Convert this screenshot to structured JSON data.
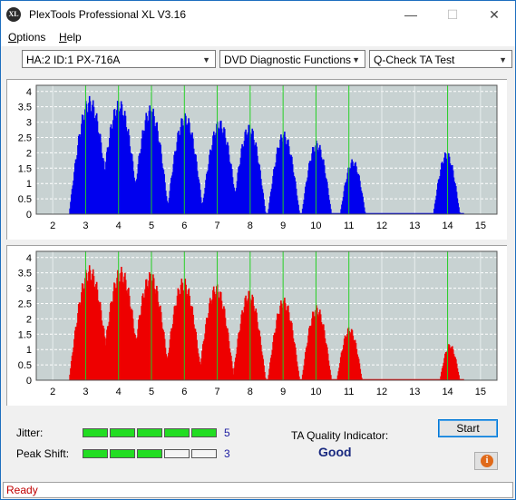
{
  "window": {
    "title": "PlexTools Professional XL V3.16",
    "icon_text": "XL",
    "minimize": "—",
    "maximize": "☐",
    "close": "✕"
  },
  "menu": {
    "options": {
      "mnemonic": "O",
      "rest": "ptions"
    },
    "help": {
      "mnemonic": "H",
      "rest": "elp"
    }
  },
  "toolbar": {
    "drive": "HA:2 ID:1  PX-716A",
    "function": "DVD Diagnostic Functions",
    "test": "Q-Check TA Test",
    "dropdown_arrow": "▼"
  },
  "chart_data": [
    {
      "type": "bar",
      "id": "top",
      "color": "#0000ee",
      "x_ticks": [
        "2",
        "3",
        "4",
        "5",
        "6",
        "7",
        "8",
        "9",
        "10",
        "11",
        "12",
        "13",
        "14",
        "15"
      ],
      "y_ticks": [
        "4",
        "3.5",
        "3",
        "2.5",
        "2",
        "1.5",
        "1",
        "0.5",
        "0"
      ],
      "xlim": [
        1.5,
        15.5
      ],
      "ylim": [
        0,
        4.2
      ],
      "markers": [
        3,
        4,
        5,
        6,
        7,
        8,
        9,
        10,
        11,
        14
      ],
      "peaks": [
        {
          "center": 3.1,
          "height": 3.85,
          "width": 0.62
        },
        {
          "center": 4.0,
          "height": 3.75,
          "width": 0.6
        },
        {
          "center": 4.95,
          "height": 3.55,
          "width": 0.55
        },
        {
          "center": 6.0,
          "height": 3.3,
          "width": 0.55
        },
        {
          "center": 7.05,
          "height": 3.1,
          "width": 0.55
        },
        {
          "center": 7.95,
          "height": 2.95,
          "width": 0.5
        },
        {
          "center": 9.0,
          "height": 2.7,
          "width": 0.48
        },
        {
          "center": 10.0,
          "height": 2.4,
          "width": 0.45
        },
        {
          "center": 11.1,
          "height": 1.8,
          "width": 0.38
        },
        {
          "center": 13.95,
          "height": 2.05,
          "width": 0.4
        }
      ]
    },
    {
      "type": "bar",
      "id": "bottom",
      "color": "#ee0000",
      "x_ticks": [
        "2",
        "3",
        "4",
        "5",
        "6",
        "7",
        "8",
        "9",
        "10",
        "11",
        "12",
        "13",
        "14",
        "15"
      ],
      "y_ticks": [
        "4",
        "3.5",
        "3",
        "2.5",
        "2",
        "1.5",
        "1",
        "0.5",
        "0"
      ],
      "xlim": [
        1.5,
        15.5
      ],
      "ylim": [
        0,
        4.2
      ],
      "markers": [
        3,
        4,
        5,
        6,
        7,
        8,
        9,
        10,
        11,
        14
      ],
      "peaks": [
        {
          "center": 3.1,
          "height": 3.75,
          "width": 0.62
        },
        {
          "center": 4.05,
          "height": 3.7,
          "width": 0.6
        },
        {
          "center": 4.95,
          "height": 3.55,
          "width": 0.58
        },
        {
          "center": 5.95,
          "height": 3.35,
          "width": 0.56
        },
        {
          "center": 6.95,
          "height": 3.15,
          "width": 0.54
        },
        {
          "center": 7.95,
          "height": 2.95,
          "width": 0.5
        },
        {
          "center": 9.0,
          "height": 2.7,
          "width": 0.48
        },
        {
          "center": 10.0,
          "height": 2.45,
          "width": 0.45
        },
        {
          "center": 11.0,
          "height": 1.75,
          "width": 0.38
        },
        {
          "center": 14.05,
          "height": 1.2,
          "width": 0.3
        }
      ]
    }
  ],
  "results": {
    "jitter_label": "Jitter:",
    "jitter_value": "5",
    "jitter_level": 5,
    "peak_shift_label": "Peak Shift:",
    "peak_shift_value": "3",
    "peak_shift_level": 3,
    "meter_segments": 5,
    "ta_label": "TA Quality Indicator:",
    "ta_value": "Good",
    "start_label": "Start",
    "info_icon": "i"
  },
  "status": {
    "text": "Ready"
  },
  "colors": {
    "plot_background": "#c8d2d2",
    "marker": "#22cc22",
    "meter_on": "#22dd22",
    "status_text": "#c00000"
  }
}
